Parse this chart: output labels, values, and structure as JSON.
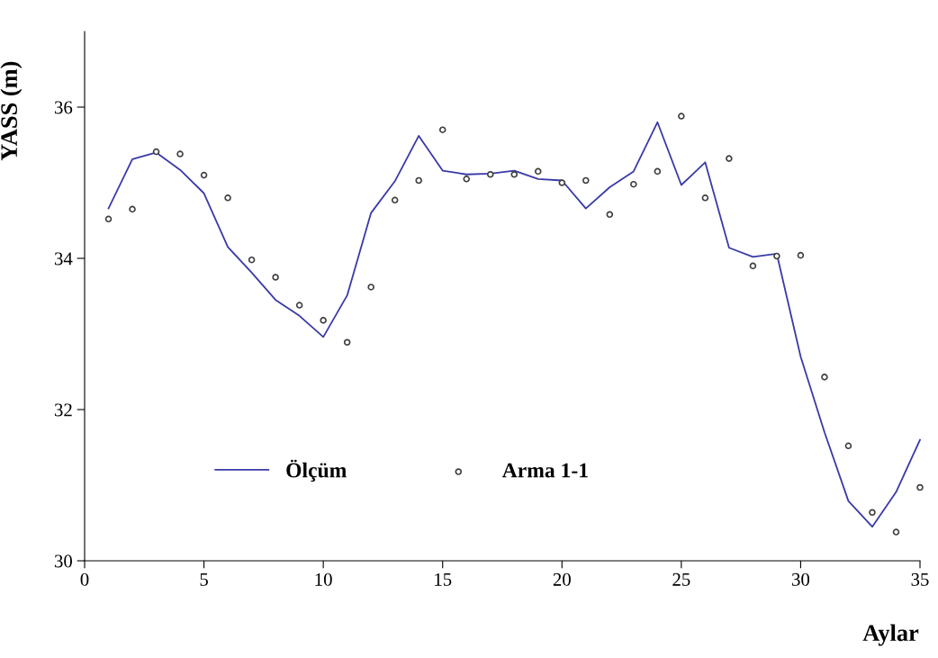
{
  "chart_data": {
    "type": "line",
    "xlabel": "Aylar",
    "ylabel": "YASS (m)",
    "xlim": [
      0,
      35
    ],
    "xticks": [
      0,
      5,
      10,
      15,
      20,
      25,
      30,
      35
    ],
    "ylim": [
      30,
      37
    ],
    "yticks": [
      30,
      32,
      34,
      36
    ],
    "grid": false,
    "legend": "bottom",
    "x": [
      1,
      2,
      3,
      4,
      5,
      6,
      7,
      8,
      9,
      10,
      11,
      12,
      13,
      14,
      15,
      16,
      17,
      18,
      19,
      20,
      21,
      22,
      23,
      24,
      25,
      26,
      27,
      28,
      29,
      30,
      31,
      32,
      33,
      34,
      35
    ],
    "series": [
      {
        "name": "Ölçüm",
        "color": "#3a3aa8",
        "marker": "none",
        "line_style": "solid",
        "values": [
          34.66,
          35.31,
          35.4,
          35.17,
          34.86,
          34.15,
          33.81,
          33.45,
          33.24,
          32.96,
          33.51,
          34.6,
          35.02,
          35.62,
          35.16,
          35.11,
          35.12,
          35.16,
          35.05,
          35.03,
          34.66,
          34.94,
          35.15,
          35.8,
          34.97,
          35.27,
          34.14,
          34.02,
          34.06,
          32.7,
          31.7,
          30.79,
          30.45,
          30.91,
          31.6
        ]
      },
      {
        "name": "Arma 1-1",
        "type": "scatter",
        "color": "#404040",
        "marker": "circle",
        "values": [
          34.52,
          34.65,
          35.41,
          35.38,
          35.1,
          34.8,
          33.98,
          33.75,
          33.38,
          33.18,
          32.89,
          33.62,
          34.77,
          35.03,
          35.7,
          35.05,
          35.11,
          35.11,
          35.15,
          35.0,
          35.03,
          34.58,
          34.98,
          35.15,
          35.88,
          34.8,
          35.32,
          33.9,
          34.03,
          34.04,
          32.43,
          31.52,
          30.64,
          30.38,
          30.97
        ]
      }
    ]
  }
}
